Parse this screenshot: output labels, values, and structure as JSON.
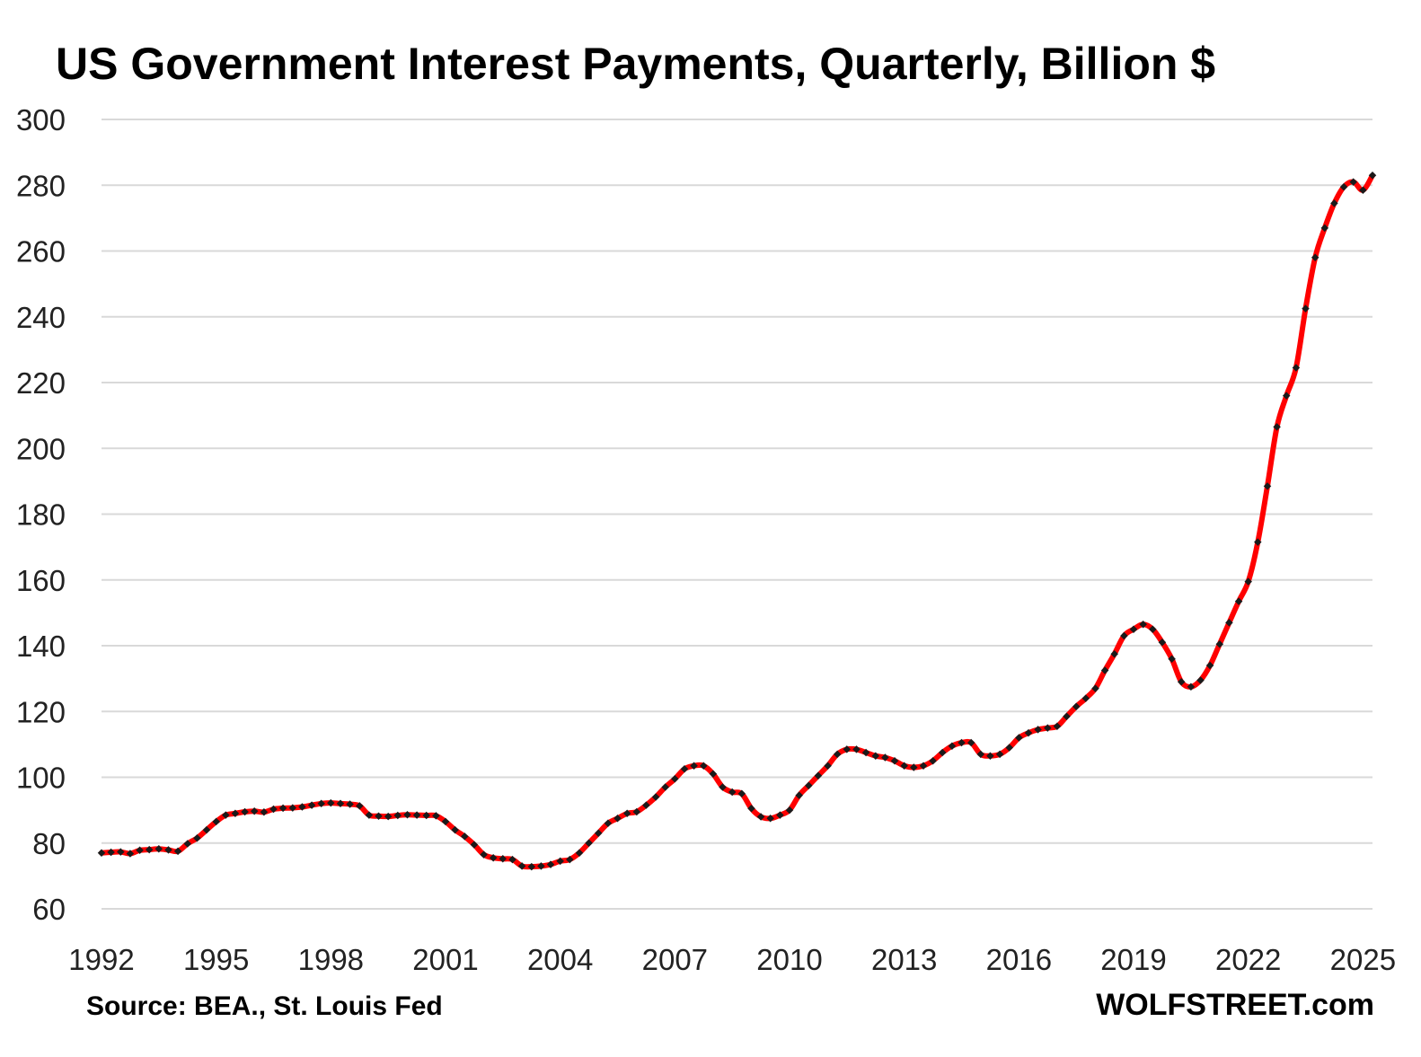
{
  "chart_data": {
    "type": "line",
    "title": "US Government Interest Payments, Quarterly, Billion $",
    "xlabel": "",
    "ylabel": "",
    "ylim": [
      60,
      300
    ],
    "xlim": [
      1992,
      2025.25
    ],
    "yticks": [
      "60",
      "80",
      "100",
      "120",
      "140",
      "160",
      "180",
      "200",
      "220",
      "240",
      "260",
      "280",
      "300"
    ],
    "xticks": [
      "1992",
      "1995",
      "1998",
      "2001",
      "2004",
      "2007",
      "2010",
      "2013",
      "2016",
      "2019",
      "2022",
      "2025"
    ],
    "grid": true,
    "legend": "none",
    "colors": {
      "line": "#ff0000",
      "markers": "#1a1a1a",
      "grid": "#d9d9d9"
    },
    "series": [
      {
        "x": [
          "1992-Q1",
          "1992-Q2",
          "1992-Q3",
          "1992-Q4",
          "1993-Q1",
          "1993-Q2",
          "1993-Q3",
          "1993-Q4",
          "1994-Q1",
          "1994-Q2",
          "1994-Q3",
          "1994-Q4",
          "1995-Q1",
          "1995-Q2",
          "1995-Q3",
          "1995-Q4",
          "1996-Q1",
          "1996-Q2",
          "1996-Q3",
          "1996-Q4",
          "1997-Q1",
          "1997-Q2",
          "1997-Q3",
          "1997-Q4",
          "1998-Q1",
          "1998-Q2",
          "1998-Q3",
          "1998-Q4",
          "1999-Q1",
          "1999-Q2",
          "1999-Q3",
          "1999-Q4",
          "2000-Q1",
          "2000-Q2",
          "2000-Q3",
          "2000-Q4",
          "2001-Q1",
          "2001-Q2",
          "2001-Q3",
          "2001-Q4",
          "2002-Q1",
          "2002-Q2",
          "2002-Q3",
          "2002-Q4",
          "2003-Q1",
          "2003-Q2",
          "2003-Q3",
          "2003-Q4",
          "2004-Q1",
          "2004-Q2",
          "2004-Q3",
          "2004-Q4",
          "2005-Q1",
          "2005-Q2",
          "2005-Q3",
          "2005-Q4",
          "2006-Q1",
          "2006-Q2",
          "2006-Q3",
          "2006-Q4",
          "2007-Q1",
          "2007-Q2",
          "2007-Q3",
          "2007-Q4",
          "2008-Q1",
          "2008-Q2",
          "2008-Q3",
          "2008-Q4",
          "2009-Q1",
          "2009-Q2",
          "2009-Q3",
          "2009-Q4",
          "2010-Q1",
          "2010-Q2",
          "2010-Q3",
          "2010-Q4",
          "2011-Q1",
          "2011-Q2",
          "2011-Q3",
          "2011-Q4",
          "2012-Q1",
          "2012-Q2",
          "2012-Q3",
          "2012-Q4",
          "2013-Q1",
          "2013-Q2",
          "2013-Q3",
          "2013-Q4",
          "2014-Q1",
          "2014-Q2",
          "2014-Q3",
          "2014-Q4",
          "2015-Q1",
          "2015-Q2",
          "2015-Q3",
          "2015-Q4",
          "2016-Q1",
          "2016-Q2",
          "2016-Q3",
          "2016-Q4",
          "2017-Q1",
          "2017-Q2",
          "2017-Q3",
          "2017-Q4",
          "2018-Q1",
          "2018-Q2",
          "2018-Q3",
          "2018-Q4",
          "2019-Q1",
          "2019-Q2",
          "2019-Q3",
          "2019-Q4",
          "2020-Q1",
          "2020-Q2",
          "2020-Q3",
          "2020-Q4",
          "2021-Q1",
          "2021-Q2",
          "2021-Q3",
          "2021-Q4",
          "2022-Q1",
          "2022-Q2",
          "2022-Q3",
          "2022-Q4",
          "2023-Q1",
          "2023-Q2",
          "2023-Q3",
          "2023-Q4",
          "2024-Q1",
          "2024-Q2",
          "2024-Q3",
          "2024-Q4",
          "2025-Q1",
          "2025-Q2"
        ],
        "values": [
          77,
          77.2,
          77.3,
          76.8,
          77.8,
          78,
          78.2,
          77.9,
          77.5,
          79.8,
          81.5,
          84,
          86.5,
          88.5,
          89,
          89.5,
          89.7,
          89.4,
          90.3,
          90.6,
          90.7,
          91,
          91.5,
          92,
          92.2,
          92,
          91.8,
          91.3,
          88.5,
          88.2,
          88.1,
          88.4,
          88.6,
          88.5,
          88.4,
          88.3,
          86.5,
          84,
          82,
          79.5,
          76.5,
          75.5,
          75.2,
          75,
          73,
          72.8,
          73,
          73.5,
          74.5,
          75,
          77,
          80,
          83,
          86,
          87.5,
          89,
          89.5,
          91.5,
          94,
          97,
          99.5,
          102.5,
          103.5,
          103.5,
          101,
          97,
          95.5,
          95,
          90.5,
          88,
          87.5,
          88.5,
          90,
          94.5,
          97.5,
          100.5,
          103.5,
          107,
          108.5,
          108.5,
          107.5,
          106.5,
          106,
          105,
          103.5,
          103,
          103.5,
          105,
          107.5,
          109.5,
          110.5,
          110.5,
          107,
          106.5,
          107,
          109,
          112,
          113.5,
          114.5,
          115,
          115.5,
          118.5,
          121.5,
          124,
          127,
          132.5,
          137.5,
          143,
          145,
          146.5,
          145,
          141,
          136,
          129,
          127.5,
          129.5,
          134,
          140.5,
          147,
          153.5,
          159.5,
          171.5,
          188.5,
          206.5,
          216,
          224.5,
          242.5,
          258,
          267,
          274.5,
          279.5,
          281,
          278.5,
          283
        ]
      }
    ],
    "source": "Source: BEA., St. Louis Fed",
    "brand": "WOLFSTREET.com"
  }
}
